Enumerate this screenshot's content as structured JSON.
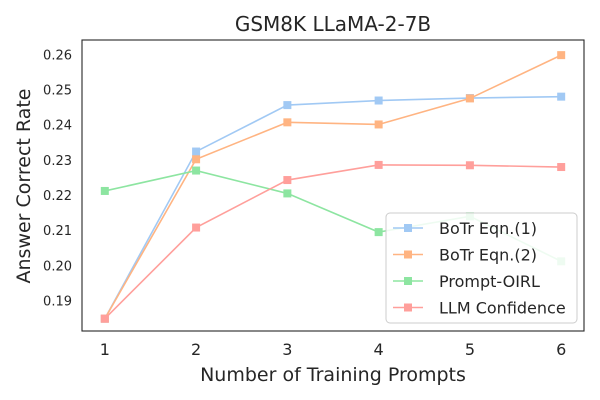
{
  "chart_data": {
    "type": "line",
    "title": "GSM8K LLaMA-2-7B",
    "xlabel": "Number of Training Prompts",
    "ylabel": "Answer Correct Rate",
    "x": [
      1,
      2,
      3,
      4,
      5,
      6
    ],
    "xticks": [
      "1",
      "2",
      "3",
      "4",
      "5",
      "6"
    ],
    "xlim": [
      0.75,
      6.25
    ],
    "ylim": [
      0.1815,
      0.2642
    ],
    "yticks": [
      "0.19",
      "0.20",
      "0.21",
      "0.22",
      "0.23",
      "0.24",
      "0.25",
      "0.26"
    ],
    "grid": false,
    "legend_position": "lower-right",
    "series": [
      {
        "name": "BoTr Eqn.(1)",
        "color": "#a1c9f4",
        "values": [
          0.185,
          0.2325,
          0.2457,
          0.247,
          0.2477,
          0.2481
        ]
      },
      {
        "name": "BoTr Eqn.(2)",
        "color": "#ffb482",
        "values": [
          0.185,
          0.2303,
          0.2408,
          0.2402,
          0.2476,
          0.2599
        ]
      },
      {
        "name": "Prompt-OIRL",
        "color": "#8de5a1",
        "values": [
          0.2213,
          0.2271,
          0.2206,
          0.2096,
          0.2141,
          0.2013
        ]
      },
      {
        "name": "LLM Confidence",
        "color": "#ff9f9b",
        "values": [
          0.185,
          0.2109,
          0.2244,
          0.2287,
          0.2286,
          0.2281
        ]
      }
    ]
  }
}
